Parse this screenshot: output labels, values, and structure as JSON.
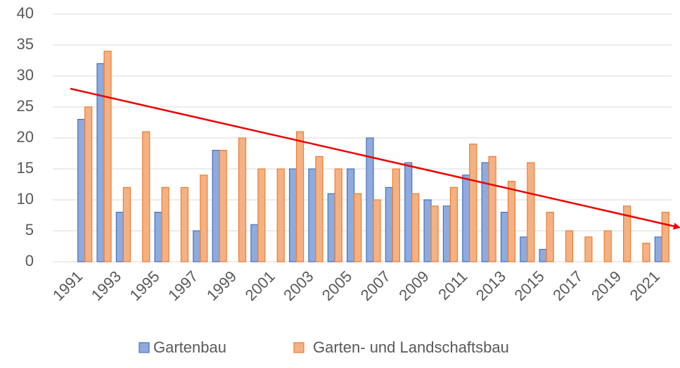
{
  "chart_data": {
    "type": "bar",
    "categories": [
      "1991",
      null,
      "1993",
      null,
      "1995",
      null,
      "1997",
      null,
      "1999",
      null,
      "2001",
      null,
      "2003",
      null,
      "2005",
      null,
      "2007",
      null,
      "2009",
      null,
      "2011",
      null,
      "2013",
      null,
      "2015",
      null,
      "2017",
      null,
      "2019",
      null,
      "2021"
    ],
    "series": [
      {
        "name": "Gartenbau",
        "color": "#8faadc",
        "edge": "#4472c4",
        "values": [
          23,
          32,
          8,
          null,
          8,
          null,
          5,
          18,
          null,
          6,
          null,
          15,
          15,
          11,
          15,
          20,
          12,
          16,
          10,
          9,
          14,
          16,
          8,
          4,
          2,
          null,
          null,
          null,
          null,
          null,
          4
        ]
      },
      {
        "name": "Garten- und Landschaftsbau",
        "color": "#f4b183",
        "edge": "#ed7d31",
        "values": [
          25,
          34,
          12,
          21,
          12,
          12,
          14,
          18,
          20,
          15,
          15,
          21,
          17,
          15,
          11,
          10,
          15,
          11,
          9,
          12,
          19,
          17,
          13,
          16,
          8,
          5,
          4,
          5,
          9,
          3,
          8
        ]
      }
    ],
    "ylim": [
      0,
      40
    ],
    "yticks": [
      0,
      5,
      10,
      15,
      20,
      25,
      30,
      35,
      40
    ],
    "grid": true,
    "legend": "bottom"
  }
}
